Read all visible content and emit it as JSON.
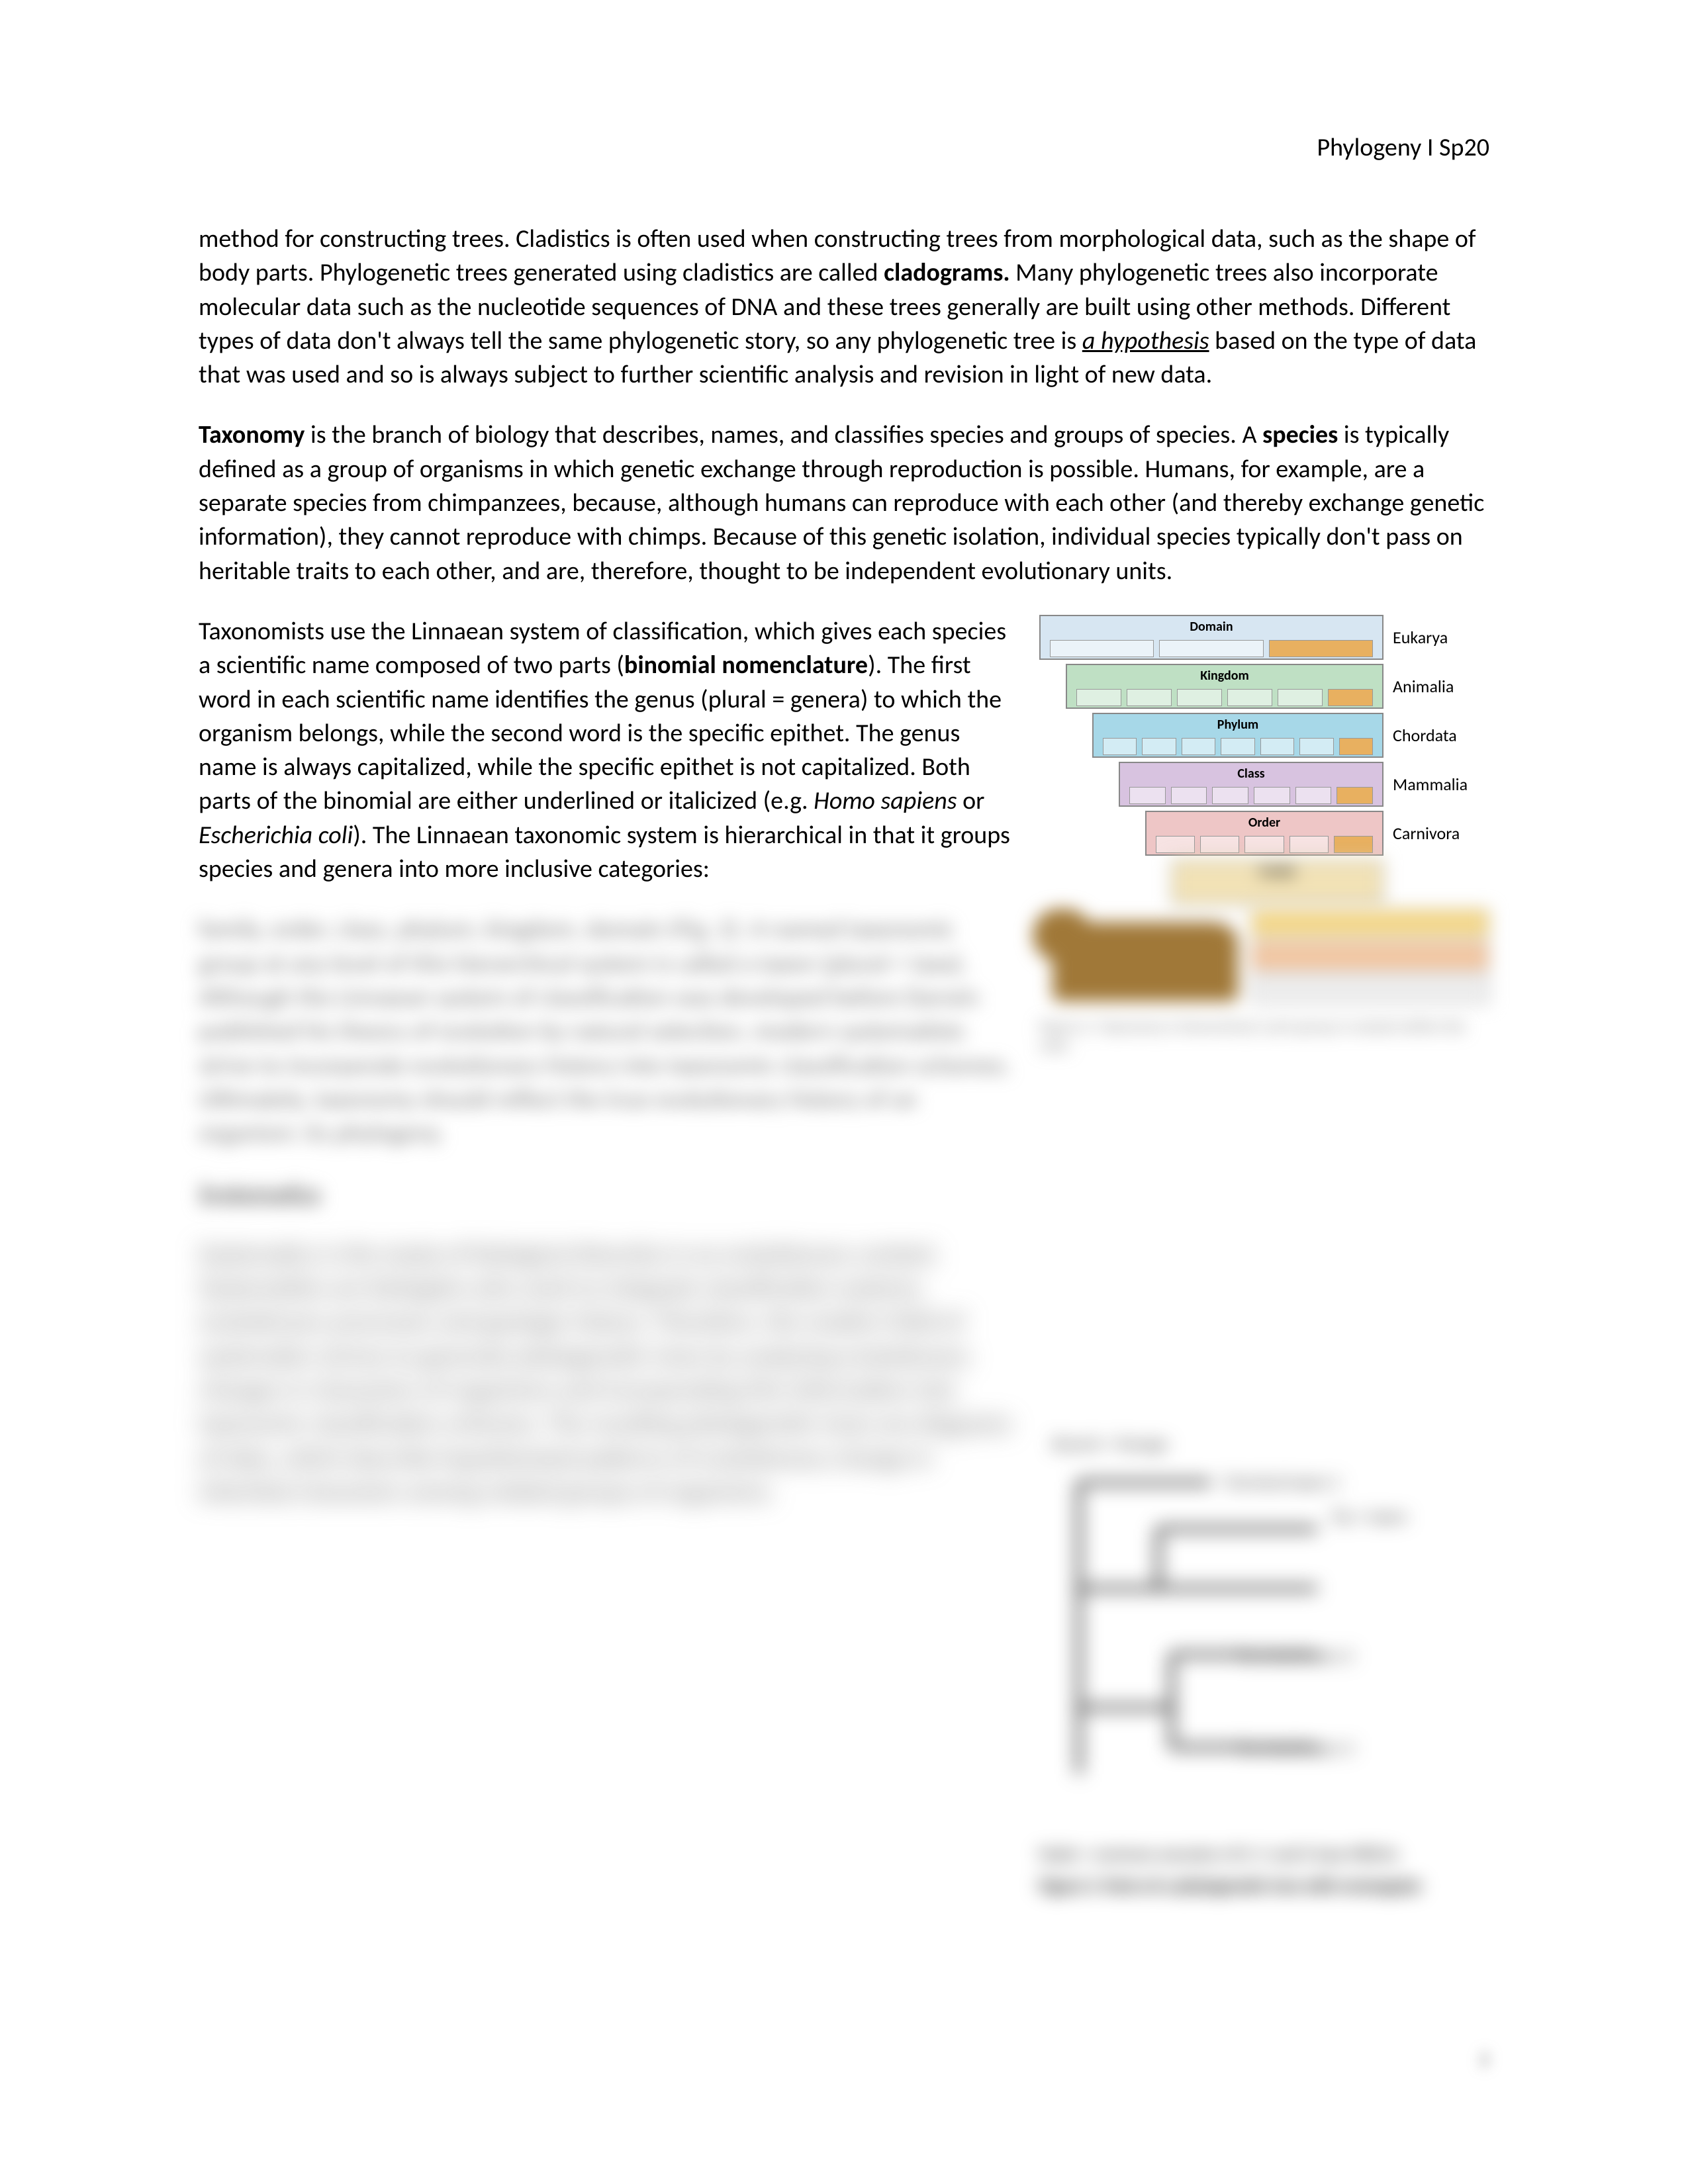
{
  "header": "Phylogeny I Sp20",
  "para1": {
    "t1": "method for constructing trees. Cladistics is often used when constructing trees from morphological data, such as the shape of body parts. Phylogenetic trees generated using cladistics are called ",
    "b1": "cladograms.",
    "t2": " Many phylogenetic trees also incorporate molecular data such as the nucleotide sequences of DNA and these trees generally are built using other methods. Different types of data don't always tell the same phylogenetic story, so any phylogenetic tree is ",
    "u1": "a hypothesis",
    "t3": " based on the type of data that was used and so is always subject to further scientific analysis and revision in light of new data."
  },
  "para2": {
    "b1": "Taxonomy",
    "t1": " is the branch of biology that describes, names, and classifies species and groups of species. A ",
    "b2": "species",
    "t2": " is typically defined as a group of organisms in which genetic exchange through reproduction is possible. Humans, for example, are a separate species from chimpanzees, because, although humans can reproduce with each other (and thereby exchange genetic information), they cannot reproduce with chimps. Because of this genetic isolation, individual species typically don't pass on heritable traits to each other, and are, therefore, thought to be independent evolutionary units."
  },
  "para3": {
    "t1": "Taxonomists use the Linnaean system of classification, which gives each species a scientific name composed of two parts (",
    "b1": "binomial nomenclature",
    "t2": "). The first word in each scientific name identifies the genus (plural = genera) to which the organism belongs, while the second word is the specific epithet. The genus name is always capitalized, while the specific epithet is not capitalized. Both parts of the binomial are either underlined or italicized (e.g. ",
    "i1": "Homo sapiens",
    "t3": " or ",
    "i2": "Escherichia coli",
    "t4": "). The Linnaean taxonomic system is hierarchical in that it groups species and genera into more inclusive categories:"
  },
  "blur1": "family, order, class, phylum, kingdom, domain (Fig. 2). A named taxonomic group at any level of this hierarchical system is called a taxon (plural = taxa). Although the Linnaean system of classification was developed before Darwin published his theory of evolution by natural selection, modern systematists strive to incorporate evolutionary history into taxonomic classification schemes. Ultimately, taxonomy should reflect the true evolutionary history of an organism: its phylogeny.",
  "systHeader": "Systematics",
  "blur2": "Systematics is the study of biological diversity in an evolutionary context. Systematists are biologists who work to integrate classification systems, evolutionary processes and geologic history. Therefore, the modern field of systematics strives to generate phylogenetic trees by analyzing evolutionary changes in characters of organisms and incorporating this information into taxonomic classification schemes. The resulting phylogenetic trees are diagrams of data, which describe hypothesized patterns of evolutionary change in inherited characters among related groups of organisms.",
  "taxonomy": {
    "levels": [
      {
        "name": "Domain",
        "ex": "Eukarya",
        "bg": "#d7e6f2",
        "cells": 3
      },
      {
        "name": "Kingdom",
        "ex": "Animalia",
        "bg": "#bfe0c4",
        "cells": 6
      },
      {
        "name": "Phylum",
        "ex": "Chordata",
        "bg": "#a7d8e8",
        "cells": 7
      },
      {
        "name": "Class",
        "ex": "Mammalia",
        "bg": "#d8c3e0",
        "cells": 6
      },
      {
        "name": "Order",
        "ex": "Carnivora",
        "bg": "#eec6c6",
        "cells": 5
      },
      {
        "name": "Family",
        "ex": "",
        "bg": "#f2e2b6",
        "cells": 0
      }
    ],
    "caption": "Figure 2. Taxonomy is hierarchical; each group is nested within the next."
  },
  "tree": {
    "title": "Branch = lineage",
    "t1": "Terminal taxon 1",
    "t2": "Tip = taxon",
    "t3": "Terminal taxon 2",
    "t4": "Terminal taxon 3",
    "cap1": "Node = common ancestor of X, Y, and Z taxa MRCAs",
    "cap2": "Figure 3. Parts of a phylogenetic tree with rectangular"
  },
  "pagenum": "2"
}
